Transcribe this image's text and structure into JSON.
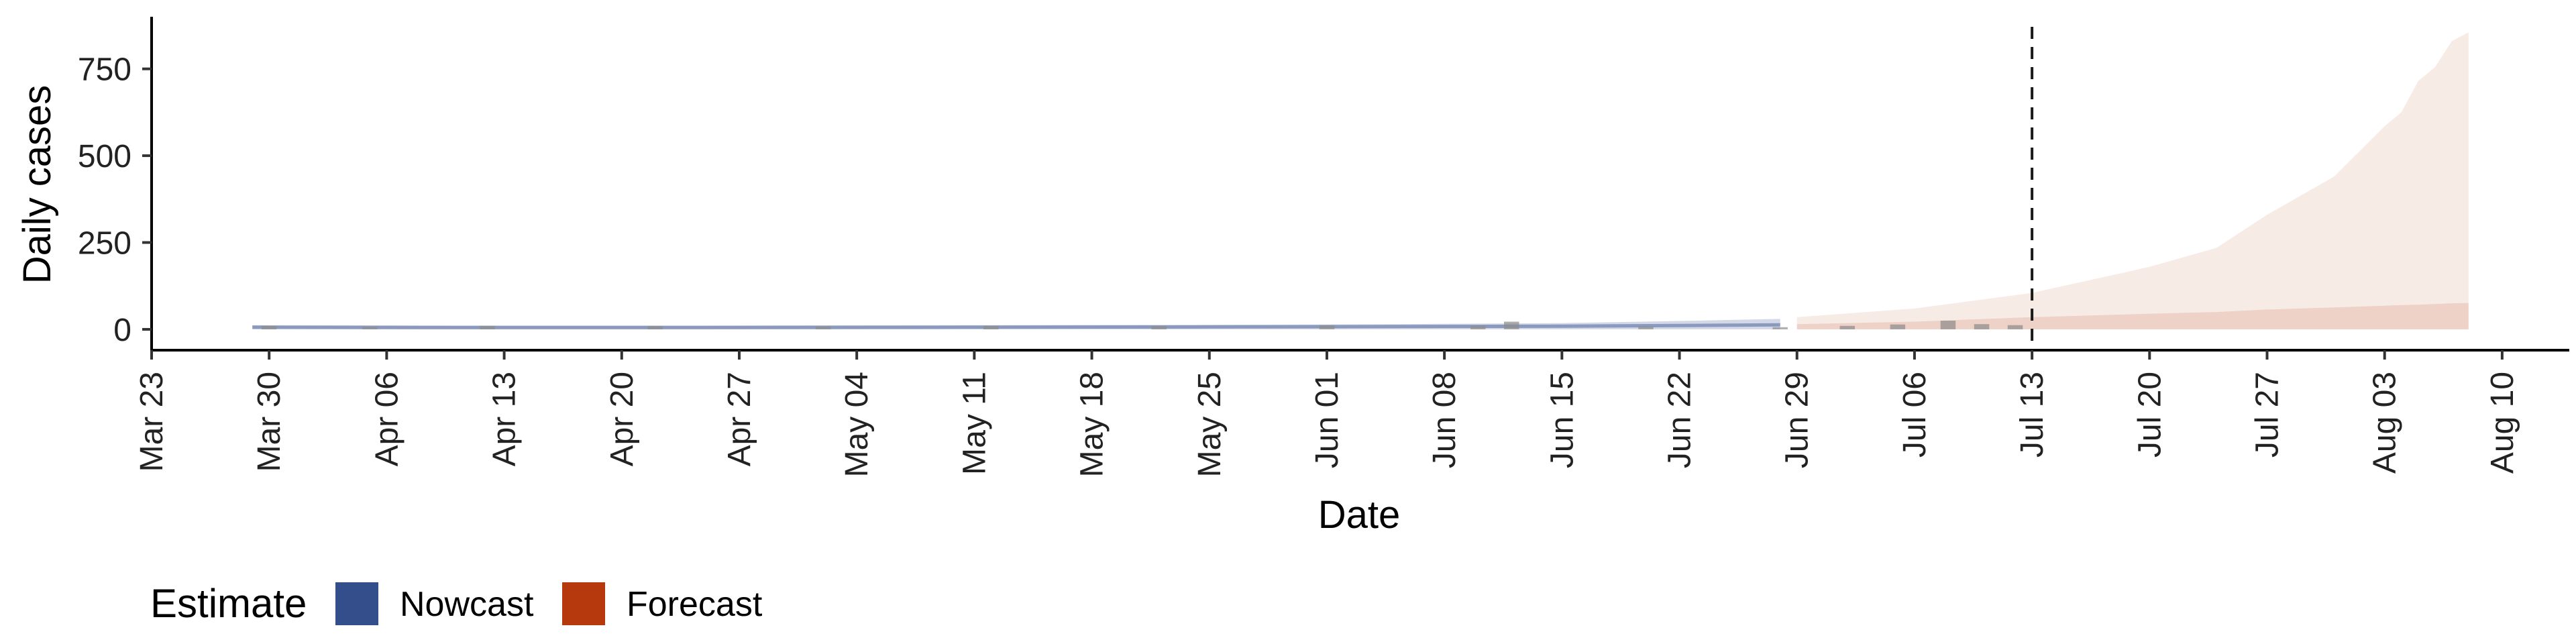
{
  "chart_data": {
    "type": "area",
    "xlabel": "Date",
    "ylabel": "Daily cases",
    "x_range": [
      "2020-03-23",
      "2020-08-14"
    ],
    "ylim": [
      -60,
      900
    ],
    "y_ticks": [
      0,
      250,
      500,
      750
    ],
    "y_tick_labels": [
      "0",
      "250",
      "500",
      "750"
    ],
    "x_ticks": [
      "2020-03-23",
      "2020-03-30",
      "2020-04-06",
      "2020-04-13",
      "2020-04-20",
      "2020-04-27",
      "2020-05-04",
      "2020-05-11",
      "2020-05-18",
      "2020-05-25",
      "2020-06-01",
      "2020-06-08",
      "2020-06-15",
      "2020-06-22",
      "2020-06-29",
      "2020-07-06",
      "2020-07-13",
      "2020-07-20",
      "2020-07-27",
      "2020-08-03",
      "2020-08-10"
    ],
    "x_tick_labels": [
      "Mar 23",
      "Mar 30",
      "Apr 06",
      "Apr 13",
      "Apr 20",
      "Apr 27",
      "May 04",
      "May 11",
      "May 18",
      "May 25",
      "Jun 01",
      "Jun 08",
      "Jun 15",
      "Jun 22",
      "Jun 29",
      "Jul 06",
      "Jul 13",
      "Jul 20",
      "Jul 27",
      "Aug 03",
      "Aug 10"
    ],
    "grid": false,
    "reference_line": {
      "x": "2020-07-13",
      "style": "dashed"
    },
    "legend": {
      "title": "Estimate",
      "position": "bottom-left",
      "entries": [
        {
          "label": "Nowcast",
          "color": "#344e8c"
        },
        {
          "label": "Forecast",
          "color": "#b5390c"
        }
      ]
    },
    "observed_cases": {
      "color": "#8c8c8c",
      "dates": [
        "2020-03-30",
        "2020-04-05",
        "2020-04-12",
        "2020-04-22",
        "2020-05-02",
        "2020-05-12",
        "2020-05-22",
        "2020-06-01",
        "2020-06-10",
        "2020-06-12",
        "2020-06-20",
        "2020-06-28",
        "2020-07-02",
        "2020-07-05",
        "2020-07-08",
        "2020-07-10",
        "2020-07-12"
      ],
      "values": [
        10,
        7,
        10,
        9,
        8,
        10,
        9,
        12,
        10,
        22,
        8,
        6,
        10,
        14,
        25,
        15,
        12
      ]
    },
    "series": [
      {
        "name": "Nowcast",
        "color": "#344e8c",
        "dates": [
          "2020-03-29",
          "2020-04-10",
          "2020-04-25",
          "2020-05-10",
          "2020-05-25",
          "2020-06-05",
          "2020-06-15",
          "2020-06-22",
          "2020-06-28"
        ],
        "lower": [
          0,
          0,
          0,
          0,
          0,
          0,
          0,
          0,
          0
        ],
        "upper": [
          12,
          11,
          11,
          12,
          13,
          15,
          18,
          24,
          30
        ],
        "median": [
          6,
          5,
          5,
          6,
          7,
          8,
          9,
          11,
          13
        ]
      },
      {
        "name": "Forecast",
        "color": "#b5390c",
        "dates": [
          "2020-06-29",
          "2020-07-06",
          "2020-07-13",
          "2020-07-20",
          "2020-07-24",
          "2020-07-27",
          "2020-07-31",
          "2020-08-03",
          "2020-08-04",
          "2020-08-05",
          "2020-08-06",
          "2020-08-07",
          "2020-08-08"
        ],
        "lower": [
          0,
          0,
          0,
          0,
          0,
          0,
          0,
          0,
          0,
          0,
          0,
          0,
          0
        ],
        "upper_outer": [
          35,
          60,
          105,
          180,
          235,
          330,
          440,
          585,
          625,
          715,
          755,
          830,
          855
        ],
        "upper_inner": [
          15,
          22,
          35,
          45,
          50,
          57,
          63,
          68,
          70,
          71,
          73,
          75,
          76
        ]
      }
    ]
  }
}
